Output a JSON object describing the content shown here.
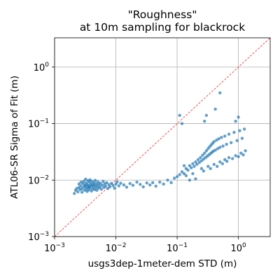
{
  "chart_data": {
    "type": "scatter",
    "title_lines": [
      "\"Roughness\"",
      "at 10m sampling for blackrock"
    ],
    "xlabel": "usgs3dep-1meter-dem STD (m)",
    "ylabel": "ATL06-SR Sigma of Fit (m)",
    "xscale": "log",
    "yscale": "log",
    "xlim": [
      0.001,
      3.3
    ],
    "ylim": [
      0.001,
      3.3
    ],
    "xticks": [
      {
        "value": 0.001,
        "base": "10",
        "exp": "−3"
      },
      {
        "value": 0.01,
        "base": "10",
        "exp": "−2"
      },
      {
        "value": 0.1,
        "base": "10",
        "exp": "−1"
      },
      {
        "value": 1,
        "base": "10",
        "exp": "0"
      }
    ],
    "yticks": [
      {
        "value": 0.001,
        "base": "10",
        "exp": "−3"
      },
      {
        "value": 0.01,
        "base": "10",
        "exp": "−2"
      },
      {
        "value": 0.1,
        "base": "10",
        "exp": "−1"
      },
      {
        "value": 1,
        "base": "10",
        "exp": "0"
      }
    ],
    "grid": true,
    "legend": "none",
    "reference_line": {
      "label": "",
      "x": [
        0.001,
        3.3
      ],
      "y": [
        0.001,
        3.3
      ],
      "color": "#ff0000",
      "style": "dashed"
    },
    "marker_color": "#1f77b4",
    "series": [
      {
        "values": [
          [
            0.0021,
            0.0058
          ],
          [
            0.0022,
            0.0066
          ],
          [
            0.0023,
            0.0071
          ],
          [
            0.0024,
            0.0062
          ],
          [
            0.0025,
            0.0085
          ],
          [
            0.0025,
            0.0074
          ],
          [
            0.0026,
            0.0068
          ],
          [
            0.0027,
            0.0092
          ],
          [
            0.0027,
            0.0079
          ],
          [
            0.0028,
            0.0061
          ],
          [
            0.0028,
            0.007
          ],
          [
            0.0029,
            0.0087
          ],
          [
            0.003,
            0.0095
          ],
          [
            0.003,
            0.0075
          ],
          [
            0.0031,
            0.0066
          ],
          [
            0.0031,
            0.0082
          ],
          [
            0.0032,
            0.0104
          ],
          [
            0.0032,
            0.0078
          ],
          [
            0.0033,
            0.0071
          ],
          [
            0.0033,
            0.0089
          ],
          [
            0.0034,
            0.0063
          ],
          [
            0.0034,
            0.0083
          ],
          [
            0.0035,
            0.0098
          ],
          [
            0.0035,
            0.0074
          ],
          [
            0.0036,
            0.008
          ],
          [
            0.0036,
            0.0067
          ],
          [
            0.0037,
            0.0092
          ],
          [
            0.0037,
            0.0076
          ],
          [
            0.0038,
            0.0101
          ],
          [
            0.0038,
            0.0072
          ],
          [
            0.0039,
            0.0085
          ],
          [
            0.004,
            0.0064
          ],
          [
            0.004,
            0.0079
          ],
          [
            0.0041,
            0.0094
          ],
          [
            0.0042,
            0.007
          ],
          [
            0.0042,
            0.0083
          ],
          [
            0.0043,
            0.0077
          ],
          [
            0.0044,
            0.009
          ],
          [
            0.0045,
            0.0068
          ],
          [
            0.0045,
            0.0081
          ],
          [
            0.0046,
            0.0099
          ],
          [
            0.0047,
            0.0074
          ],
          [
            0.0048,
            0.0086
          ],
          [
            0.0049,
            0.0066
          ],
          [
            0.005,
            0.0079
          ],
          [
            0.0051,
            0.0093
          ],
          [
            0.0052,
            0.0072
          ],
          [
            0.0053,
            0.0084
          ],
          [
            0.0055,
            0.0076
          ],
          [
            0.0056,
            0.0088
          ],
          [
            0.0058,
            0.0069
          ],
          [
            0.006,
            0.0081
          ],
          [
            0.0062,
            0.0095
          ],
          [
            0.0064,
            0.0074
          ],
          [
            0.0066,
            0.0086
          ],
          [
            0.0068,
            0.0078
          ],
          [
            0.0071,
            0.009
          ],
          [
            0.0074,
            0.0071
          ],
          [
            0.0077,
            0.0083
          ],
          [
            0.008,
            0.0076
          ],
          [
            0.0085,
            0.0088
          ],
          [
            0.009,
            0.008
          ],
          [
            0.0095,
            0.0072
          ],
          [
            0.01,
            0.0085
          ],
          [
            0.0105,
            0.0093
          ],
          [
            0.0112,
            0.0079
          ],
          [
            0.012,
            0.0088
          ],
          [
            0.0135,
            0.0082
          ],
          [
            0.015,
            0.0075
          ],
          [
            0.017,
            0.0087
          ],
          [
            0.019,
            0.0081
          ],
          [
            0.022,
            0.0092
          ],
          [
            0.025,
            0.0084
          ],
          [
            0.028,
            0.0076
          ],
          [
            0.032,
            0.0089
          ],
          [
            0.036,
            0.0082
          ],
          [
            0.04,
            0.009
          ],
          [
            0.045,
            0.0078
          ],
          [
            0.052,
            0.0092
          ],
          [
            0.06,
            0.0085
          ],
          [
            0.07,
            0.01
          ],
          [
            0.08,
            0.009
          ],
          [
            0.09,
            0.0108
          ],
          [
            0.1,
            0.0115
          ],
          [
            0.11,
            0.0125
          ],
          [
            0.12,
            0.014
          ],
          [
            0.13,
            0.013
          ],
          [
            0.14,
            0.016
          ],
          [
            0.15,
            0.015
          ],
          [
            0.16,
            0.018
          ],
          [
            0.17,
            0.0165
          ],
          [
            0.18,
            0.0195
          ],
          [
            0.19,
            0.0175
          ],
          [
            0.2,
            0.021
          ],
          [
            0.21,
            0.019
          ],
          [
            0.22,
            0.023
          ],
          [
            0.23,
            0.0205
          ],
          [
            0.24,
            0.025
          ],
          [
            0.25,
            0.022
          ],
          [
            0.26,
            0.0275
          ],
          [
            0.27,
            0.0235
          ],
          [
            0.28,
            0.03
          ],
          [
            0.29,
            0.025
          ],
          [
            0.3,
            0.033
          ],
          [
            0.31,
            0.0265
          ],
          [
            0.32,
            0.036
          ],
          [
            0.33,
            0.028
          ],
          [
            0.34,
            0.039
          ],
          [
            0.35,
            0.0295
          ],
          [
            0.36,
            0.042
          ],
          [
            0.37,
            0.031
          ],
          [
            0.38,
            0.045
          ],
          [
            0.39,
            0.0325
          ],
          [
            0.4,
            0.048
          ],
          [
            0.42,
            0.034
          ],
          [
            0.44,
            0.051
          ],
          [
            0.46,
            0.036
          ],
          [
            0.48,
            0.054
          ],
          [
            0.5,
            0.038
          ],
          [
            0.53,
            0.057
          ],
          [
            0.56,
            0.04
          ],
          [
            0.6,
            0.06
          ],
          [
            0.64,
            0.043
          ],
          [
            0.7,
            0.065
          ],
          [
            0.76,
            0.046
          ],
          [
            0.85,
            0.07
          ],
          [
            0.95,
            0.05
          ],
          [
            1.05,
            0.075
          ],
          [
            1.15,
            0.055
          ],
          [
            1.25,
            0.08
          ],
          [
            1.0,
            0.13
          ],
          [
            0.9,
            0.11
          ],
          [
            0.5,
            0.35
          ],
          [
            0.42,
            0.18
          ],
          [
            0.3,
            0.14
          ],
          [
            0.28,
            0.11
          ],
          [
            0.11,
            0.14
          ],
          [
            0.12,
            0.1
          ],
          [
            0.13,
            0.018
          ],
          [
            0.14,
            0.012
          ],
          [
            0.16,
            0.01
          ],
          [
            0.18,
            0.013
          ],
          [
            0.2,
            0.0105
          ],
          [
            0.25,
            0.016
          ],
          [
            0.27,
            0.0145
          ],
          [
            0.32,
            0.0175
          ],
          [
            0.35,
            0.016
          ],
          [
            0.4,
            0.019
          ],
          [
            0.45,
            0.0175
          ],
          [
            0.5,
            0.021
          ],
          [
            0.55,
            0.0195
          ],
          [
            0.6,
            0.023
          ],
          [
            0.65,
            0.0215
          ],
          [
            0.7,
            0.025
          ],
          [
            0.8,
            0.024
          ],
          [
            0.9,
            0.027
          ],
          [
            1.0,
            0.026
          ],
          [
            1.1,
            0.03
          ],
          [
            1.2,
            0.028
          ],
          [
            1.3,
            0.033
          ]
        ]
      }
    ]
  }
}
